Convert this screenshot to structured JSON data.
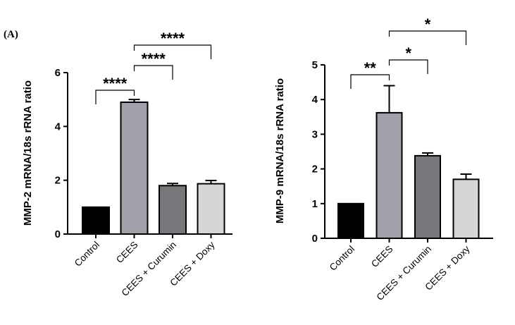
{
  "panel_label": "(A)",
  "chart_data": [
    {
      "type": "bar",
      "name": "mmp2",
      "title": "",
      "xlabel": "",
      "ylabel": "MMP-2 mRNA/18s rRNA ratio",
      "ylim": [
        0,
        6
      ],
      "yticks": [
        0,
        2,
        4,
        6
      ],
      "categories": [
        "Control",
        "CEES",
        "CEES + Curumin",
        "CEES + Doxy"
      ],
      "values": [
        1.0,
        4.9,
        1.8,
        1.87
      ],
      "errors": [
        0,
        0.1,
        0.08,
        0.12
      ],
      "colors": [
        "#000000",
        "#a0a1a9",
        "#77777b",
        "#d6d6d6"
      ],
      "significance": [
        {
          "from": 1,
          "to": 0,
          "label": "****",
          "level": 1
        },
        {
          "from": 1,
          "to": 2,
          "label": "****",
          "level": 2
        },
        {
          "from": 1,
          "to": 3,
          "label": "****",
          "level": 3
        }
      ]
    },
    {
      "type": "bar",
      "name": "mmp9",
      "title": "",
      "xlabel": "",
      "ylabel": "MMP-9 mRNA/18s rRNA ratio",
      "ylim": [
        0,
        5
      ],
      "yticks": [
        0,
        1,
        2,
        3,
        4,
        5
      ],
      "categories": [
        "Control",
        "CEES",
        "CEES + Curumin",
        "CEES + Doxy"
      ],
      "values": [
        1.0,
        3.62,
        2.38,
        1.7
      ],
      "errors": [
        0,
        0.78,
        0.08,
        0.15
      ],
      "colors": [
        "#000000",
        "#a0a1a9",
        "#77777b",
        "#d6d6d6"
      ],
      "significance": [
        {
          "from": 1,
          "to": 0,
          "label": "**",
          "level": 1
        },
        {
          "from": 1,
          "to": 2,
          "label": "*",
          "level": 2
        },
        {
          "from": 1,
          "to": 3,
          "label": "*",
          "level": 3
        }
      ]
    }
  ]
}
